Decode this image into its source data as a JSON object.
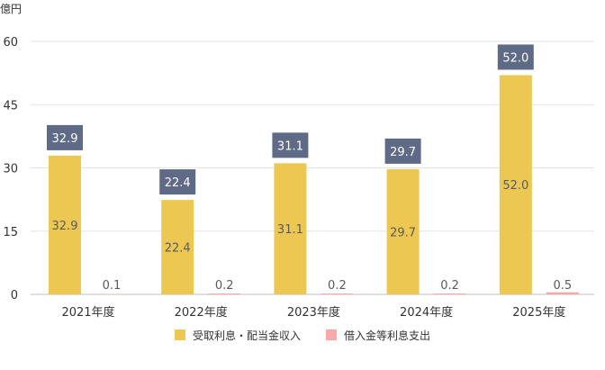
{
  "chart_data": {
    "type": "bar",
    "unit_label": "億円",
    "categories": [
      "2021年度",
      "2022年度",
      "2023年度",
      "2024年度",
      "2025年度"
    ],
    "series": [
      {
        "name": "受取利息・配当金収入",
        "values": [
          32.9,
          22.4,
          31.1,
          29.7,
          52.0
        ],
        "labels": [
          "32.9",
          "22.4",
          "31.1",
          "29.7",
          "52.0"
        ],
        "color": "#ecc853"
      },
      {
        "name": "借入金等利息支出",
        "values": [
          0.1,
          0.2,
          0.2,
          0.2,
          0.5
        ],
        "labels": [
          "0.1",
          "0.2",
          "0.2",
          "0.2",
          "0.5"
        ],
        "color": "#f7a8a8"
      }
    ],
    "callout_color": "#5f6b86",
    "ylim": [
      0,
      60
    ],
    "yticks": [
      "0",
      "15",
      "30",
      "45",
      "60"
    ],
    "grid": true,
    "legend_position": "bottom"
  }
}
